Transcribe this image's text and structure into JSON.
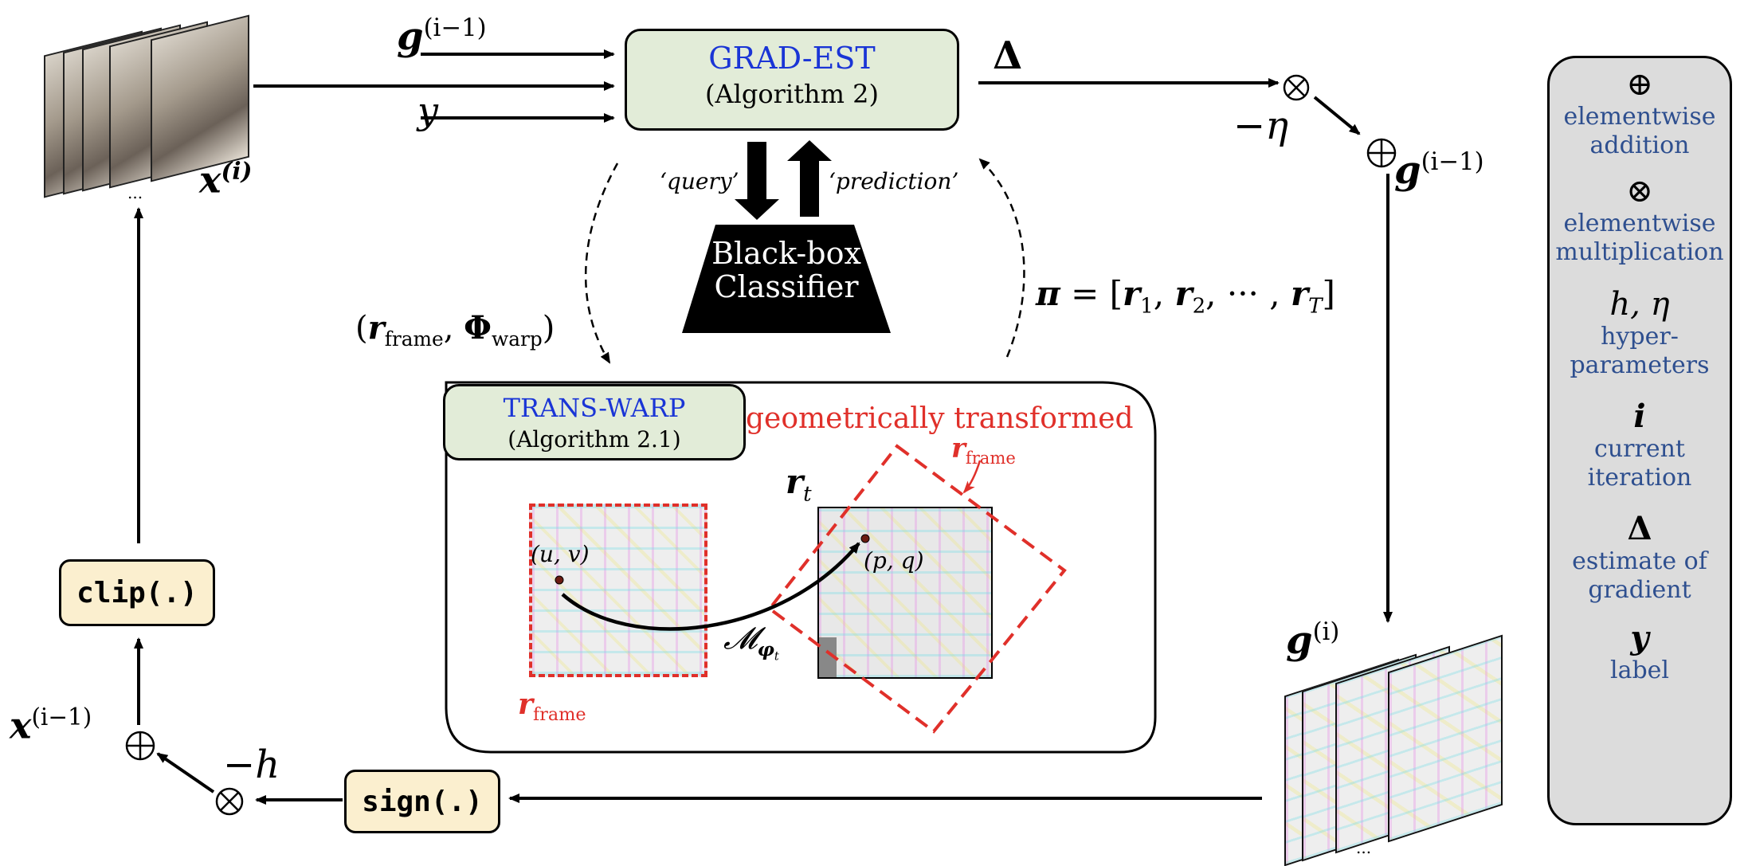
{
  "input_frames": {
    "label": "x(i)",
    "ellipsis": "..."
  },
  "grad_est": {
    "title": "GRAD-EST",
    "subtitle": "(Algorithm 2)"
  },
  "inputs": {
    "g_prev": "g(i−1)",
    "y": "y"
  },
  "delta": "Δ",
  "eta_label": "−η",
  "g_prev_right": "g(i−1)",
  "query_label": "‘query’",
  "prediction_label": "‘prediction’",
  "classifier": {
    "line1": "Black-box",
    "line2": "Classifier"
  },
  "pi_label": "π = [r1, r2, ··· , rT]",
  "warp_input_label": "(rframe, Φwarp)",
  "trans_warp": {
    "title": "TRANS-WARP",
    "subtitle": "(Algorithm 2.1)",
    "geo_label": "geometrically transformed",
    "rframe_top": "rframe",
    "rt_label": "rt",
    "uv_label": "(u, v)",
    "pq_label": "(p, q)",
    "mapping_label": "Mφt",
    "rframe_bottom": "rframe"
  },
  "g_out_label": "g(i)",
  "g_out_ellipsis": "...",
  "sign_label": "sign(.)",
  "clip_label": "clip(.)",
  "h_label": "−h",
  "x_prev_label": "x(i−1)",
  "colors": {
    "blue": "#1a35d6",
    "red": "#e0302a",
    "legend_text": "#2e4f8f",
    "green_box": "#e2ecd8",
    "yellow_box": "#fbefcf"
  },
  "legend": {
    "add_symbol": "⊕",
    "add_line1": "elementwise",
    "add_line2": "addition",
    "mul_symbol": "⊗",
    "mul_line1": "elementwise",
    "mul_line2": "multiplication",
    "hyper_symbol": "h, η",
    "hyper_line1": "hyper-",
    "hyper_line2": "parameters",
    "iter_symbol": "i",
    "iter_line1": "current",
    "iter_line2": "iteration",
    "delta_symbol": "Δ",
    "delta_line1": "estimate of",
    "delta_line2": "gradient",
    "y_symbol": "y",
    "y_line1": "label"
  }
}
